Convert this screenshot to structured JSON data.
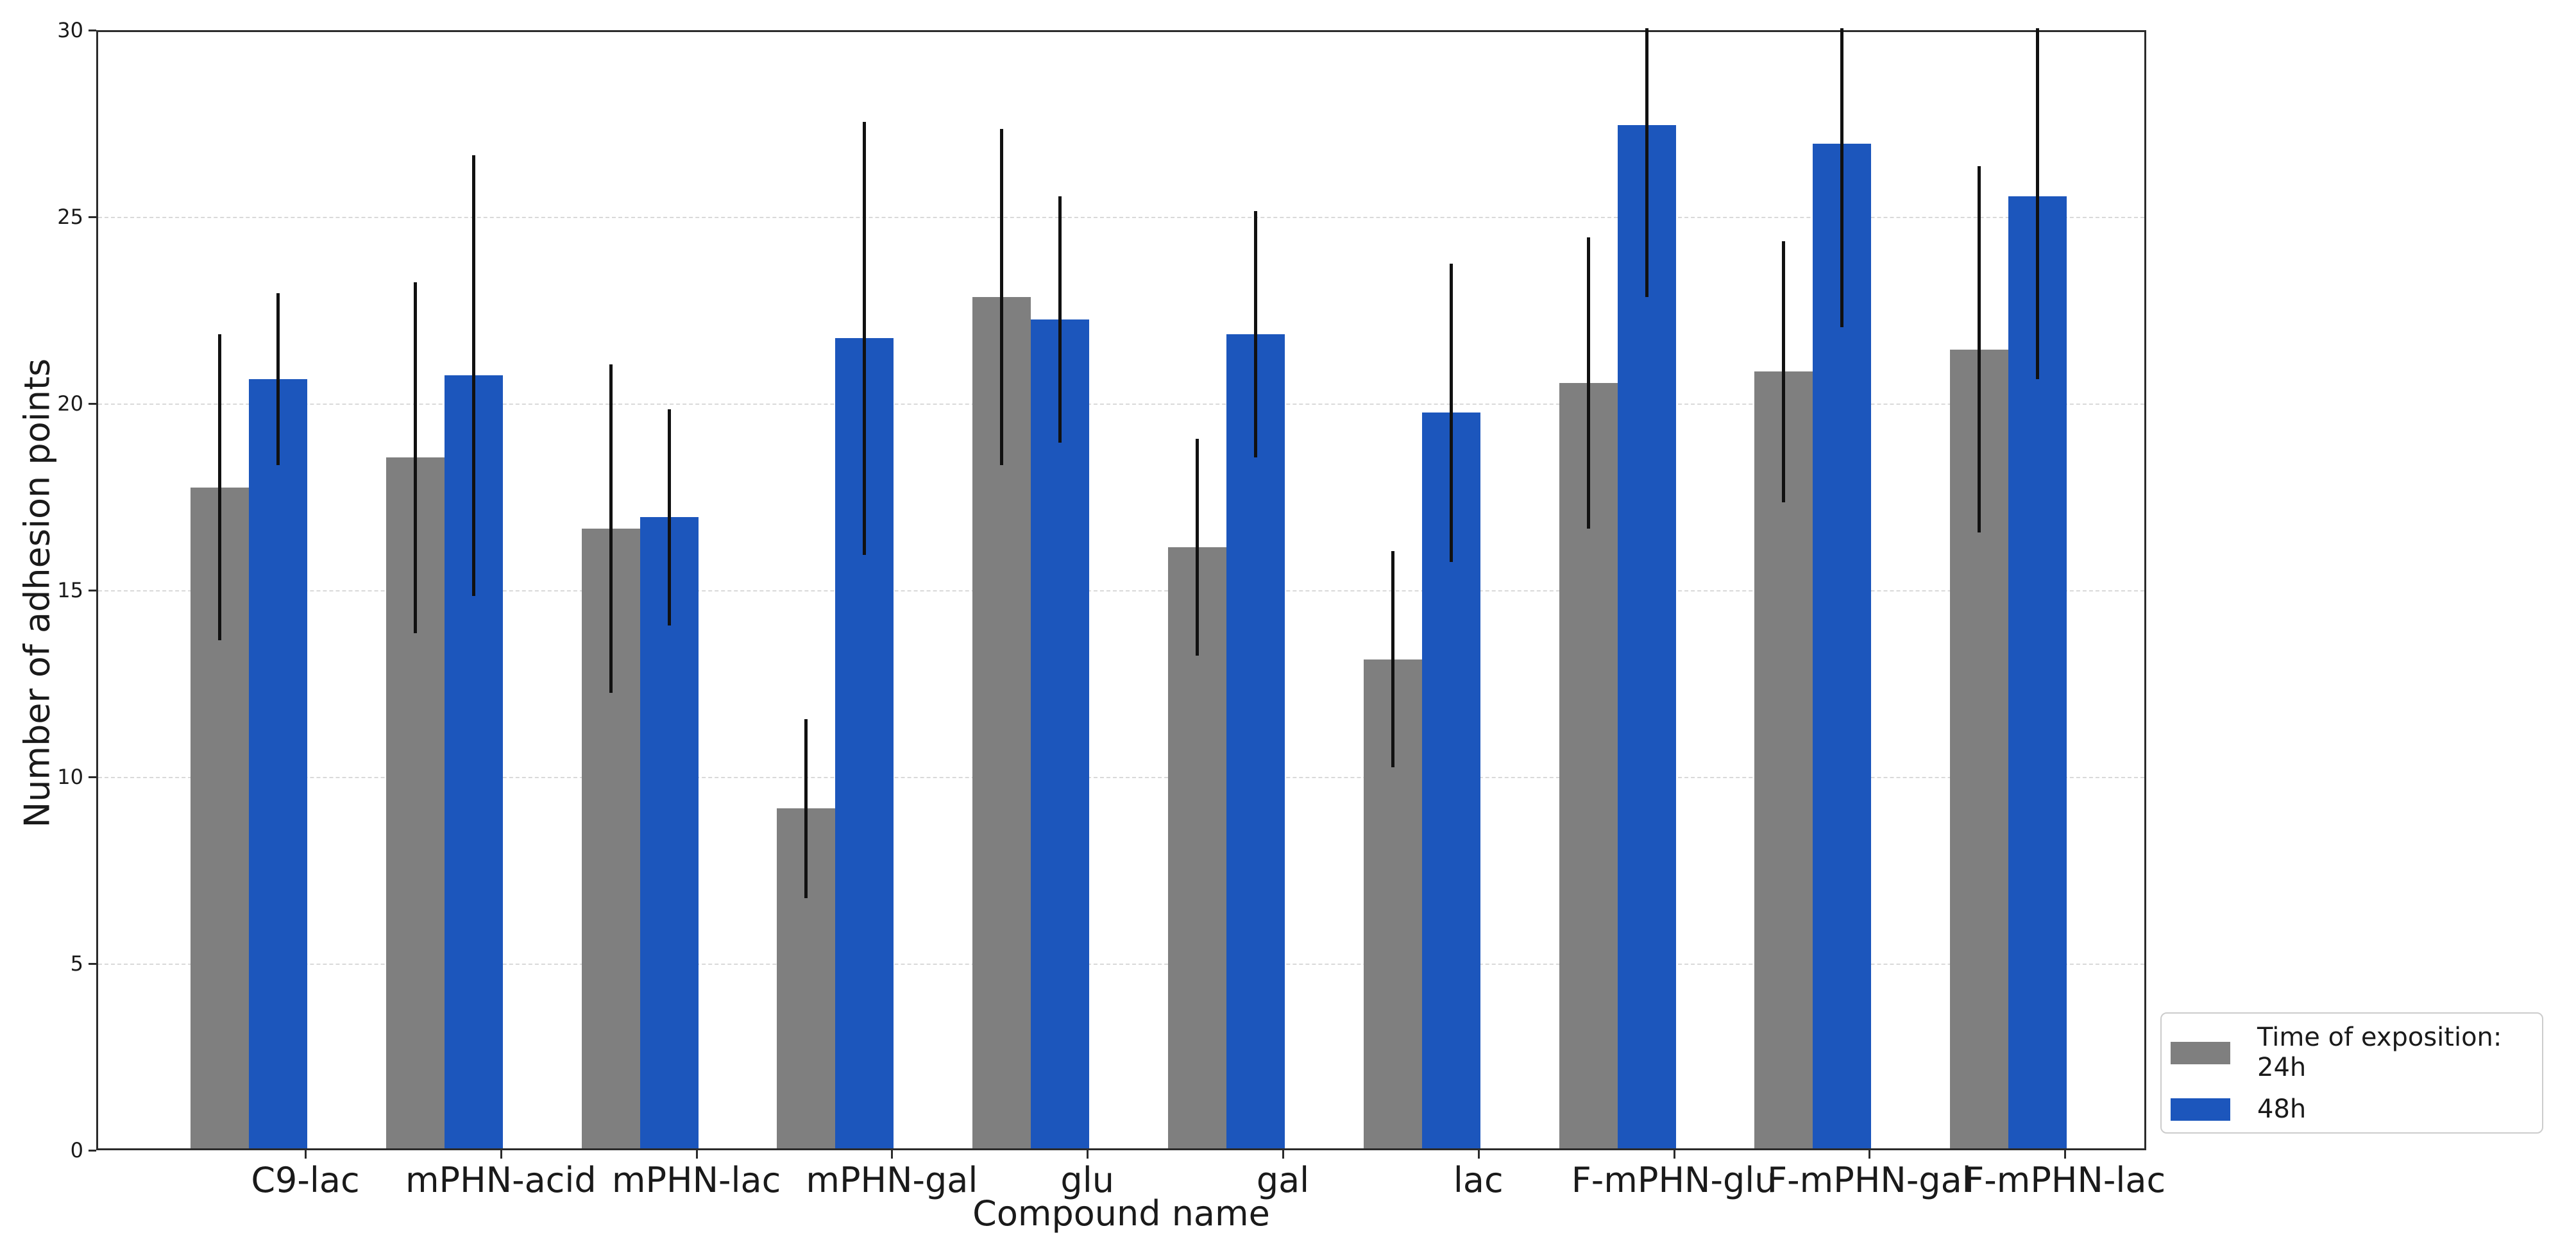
{
  "chart_data": {
    "type": "bar",
    "title": "",
    "xlabel": "Compound name",
    "ylabel": "Number of adhesion points",
    "categories": [
      "C9-lac",
      "mPHN-acid",
      "mPHN-lac",
      "mPHN-gal",
      "glu",
      "gal",
      "lac",
      "F-mPHN-glu",
      "F-mPHN-gal",
      "F-mPHN-lac"
    ],
    "series": [
      {
        "name": "24h",
        "color": "#7f7f7f",
        "values": [
          17.7,
          18.5,
          16.6,
          9.1,
          22.8,
          16.1,
          13.1,
          20.5,
          20.8,
          21.4
        ],
        "errors": [
          4.1,
          4.7,
          4.4,
          2.4,
          4.5,
          2.9,
          2.9,
          3.9,
          3.5,
          4.9
        ]
      },
      {
        "name": "48h",
        "color": "#1c56bc",
        "values": [
          20.6,
          20.7,
          16.9,
          21.7,
          22.2,
          21.8,
          19.7,
          27.4,
          26.9,
          25.5
        ],
        "errors": [
          2.3,
          5.9,
          2.9,
          5.8,
          3.3,
          3.3,
          4.0,
          4.6,
          4.9,
          4.9
        ]
      }
    ],
    "ylim": [
      0,
      30
    ],
    "yticks": [
      0,
      5,
      10,
      15,
      20,
      25,
      30
    ],
    "grid": "horizontal dashed lines at 5,10,15,20,25",
    "error_bar_style": "vertical black line, no caps, clipped at y=30",
    "legend": {
      "title": "Time of exposition:",
      "position": "outside lower right"
    }
  },
  "colors": {
    "background": "#ffffff",
    "grid": "#d9d9d9",
    "spine": "#2b2b2b",
    "text": "#1a1a1a",
    "error_bar": "#111111",
    "legend_border": "#cccccc"
  }
}
